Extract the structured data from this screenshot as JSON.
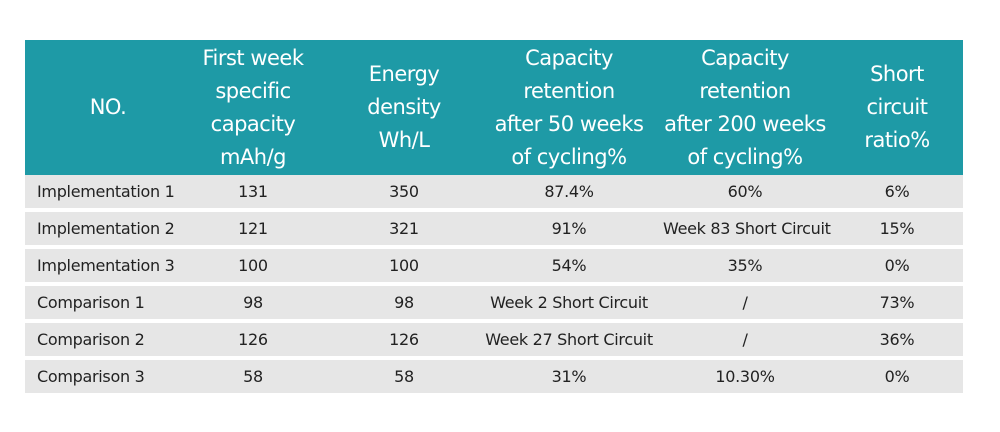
{
  "table": {
    "headers": [
      [
        "NO."
      ],
      [
        "First week",
        "specific capacity",
        "mAh/g"
      ],
      [
        "Energy density",
        "Wh/L"
      ],
      [
        "Capacity retention",
        "after 50 weeks",
        "of cycling%"
      ],
      [
        "Capacity retention",
        "after 200 weeks",
        "of cycling%"
      ],
      [
        "Short",
        "circuit ratio%"
      ]
    ],
    "rows": [
      [
        "Implementation 1",
        "131",
        "350",
        "87.4%",
        "60%",
        "6%"
      ],
      [
        "Implementation 2",
        "121",
        "321",
        "91%",
        "Week 83 Short Circuit",
        "15%"
      ],
      [
        "Implementation 3",
        "100",
        "100",
        "54%",
        "35%",
        "0%"
      ],
      [
        "Comparison 1",
        "98",
        "98",
        "Week 2 Short Circuit",
        "/",
        "73%"
      ],
      [
        "Comparison 2",
        "126",
        "126",
        "Week 27 Short Circuit",
        "/",
        "36%"
      ],
      [
        "Comparison 3",
        "58",
        "58",
        "31%",
        "10.30%",
        "0%"
      ]
    ]
  },
  "colors": {
    "header_bg": "#1e9aa6",
    "row_bg": "#e6e6e6",
    "header_text": "#ffffff",
    "body_text": "#222222"
  }
}
